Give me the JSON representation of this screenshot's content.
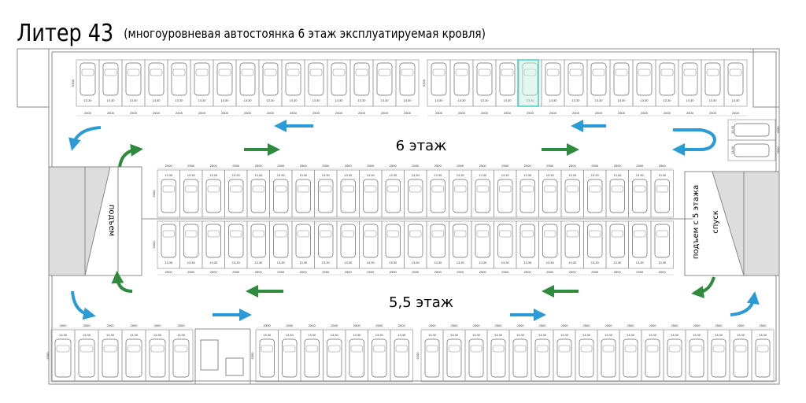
{
  "header": {
    "title": "Литер 43",
    "subtitle": "(многоуровневая автостоянка 6 этаж эксплуатируемая кровля)"
  },
  "levels": {
    "upper": "6 этаж",
    "lower": "5,5 этаж"
  },
  "ramps": {
    "left": "подъем",
    "right_up": "подъем с 5 этажа",
    "right_down": "спуск"
  },
  "rows": [
    {
      "depth": "5300",
      "stalls": [
        "13,30",
        "13,30",
        "13,30",
        "13,30",
        "13,30",
        "13,30",
        "13,30",
        "13,30",
        "13,30",
        "13,30",
        "13,30",
        "13,30",
        "13,30",
        "13,30",
        "13,30"
      ],
      "dims": [
        "2500",
        "2500",
        "2500",
        "2500",
        "2500",
        "2500",
        "2500",
        "2500",
        "2500",
        "2500",
        "2500",
        "2500",
        "2500",
        "2500",
        "2500"
      ]
    },
    {
      "depth": "5300",
      "stalls": [
        "13,30",
        "13,30",
        "13,30",
        "13,30",
        "13,30",
        "13,30",
        "13,30",
        "13,30",
        "13,30",
        "13,30",
        "13,30",
        "13,30",
        "13,30",
        "13,30"
      ],
      "dims": [
        "2500",
        "2500",
        "2500",
        "2500",
        "2500",
        "2500",
        "2500",
        "2500",
        "2500",
        "2500",
        "2500",
        "2500",
        "2500",
        "2500"
      ]
    },
    {
      "depth": "5300",
      "stalls": [
        "13,30",
        "13,30",
        "13,30",
        "13,30",
        "13,30",
        "13,30",
        "13,30",
        "13,30",
        "13,30",
        "13,30",
        "13,30",
        "13,30",
        "13,30",
        "13,30",
        "13,30",
        "13,30",
        "13,30",
        "13,30",
        "13,30",
        "13,30",
        "13,30",
        "13,30",
        "13,30"
      ],
      "dims": [
        "2500",
        "2500",
        "2500",
        "2500",
        "2500",
        "2500",
        "2500",
        "2500",
        "2500",
        "2500",
        "2500",
        "2500",
        "2500",
        "2500",
        "2500",
        "2500",
        "2500",
        "2500",
        "2500",
        "2500",
        "2500",
        "2500",
        "2500"
      ]
    },
    {
      "depth": "5300",
      "stalls": [
        "13,30",
        "13,30",
        "13,30",
        "13,30",
        "13,30",
        "13,30",
        "13,30",
        "13,30",
        "13,30",
        "13,30",
        "13,30",
        "13,30",
        "13,30",
        "13,30",
        "13,30",
        "13,30",
        "13,30",
        "13,30",
        "13,30",
        "13,30",
        "13,30",
        "13,30",
        "13,30"
      ],
      "dims": [
        "2500",
        "2500",
        "2500",
        "2500",
        "2500",
        "2500",
        "2500",
        "2500",
        "2500",
        "2500",
        "2500",
        "2500",
        "2500",
        "2500",
        "2500",
        "2500",
        "2500",
        "2500",
        "2500",
        "2500",
        "2500",
        "2500",
        "2500"
      ]
    },
    {
      "depth": "5300",
      "stalls": [
        "13,30",
        "13,30",
        "13,30",
        "13,30",
        "13,30",
        "13,30"
      ],
      "dims": [
        "2500",
        "2500",
        "2500",
        "2500",
        "2500",
        "2500"
      ]
    },
    {
      "depth": "5300",
      "stalls": [
        "13,30",
        "13,30",
        "13,30",
        "13,30",
        "13,30",
        "13,30",
        "13,30"
      ],
      "dims": [
        "2500",
        "2500",
        "2500",
        "2500",
        "2500",
        "2500",
        "2500"
      ]
    },
    {
      "depth": "5300",
      "stalls": [
        "13,30",
        "13,30",
        "13,30",
        "13,30",
        "13,30",
        "13,30",
        "13,30",
        "13,30",
        "13,30",
        "13,30",
        "13,30",
        "13,30",
        "13,30",
        "13,30",
        "13,30",
        "13,30"
      ],
      "dims": [
        "2500",
        "2500",
        "2500",
        "2500",
        "2500",
        "2500",
        "2500",
        "2500",
        "2500",
        "2500",
        "2500",
        "2500",
        "2500",
        "2500",
        "2500",
        "2500"
      ]
    },
    {
      "depth": "5300",
      "stalls": [
        "13,30",
        "13,30"
      ],
      "dims": [
        "2500",
        "2500"
      ]
    }
  ]
}
